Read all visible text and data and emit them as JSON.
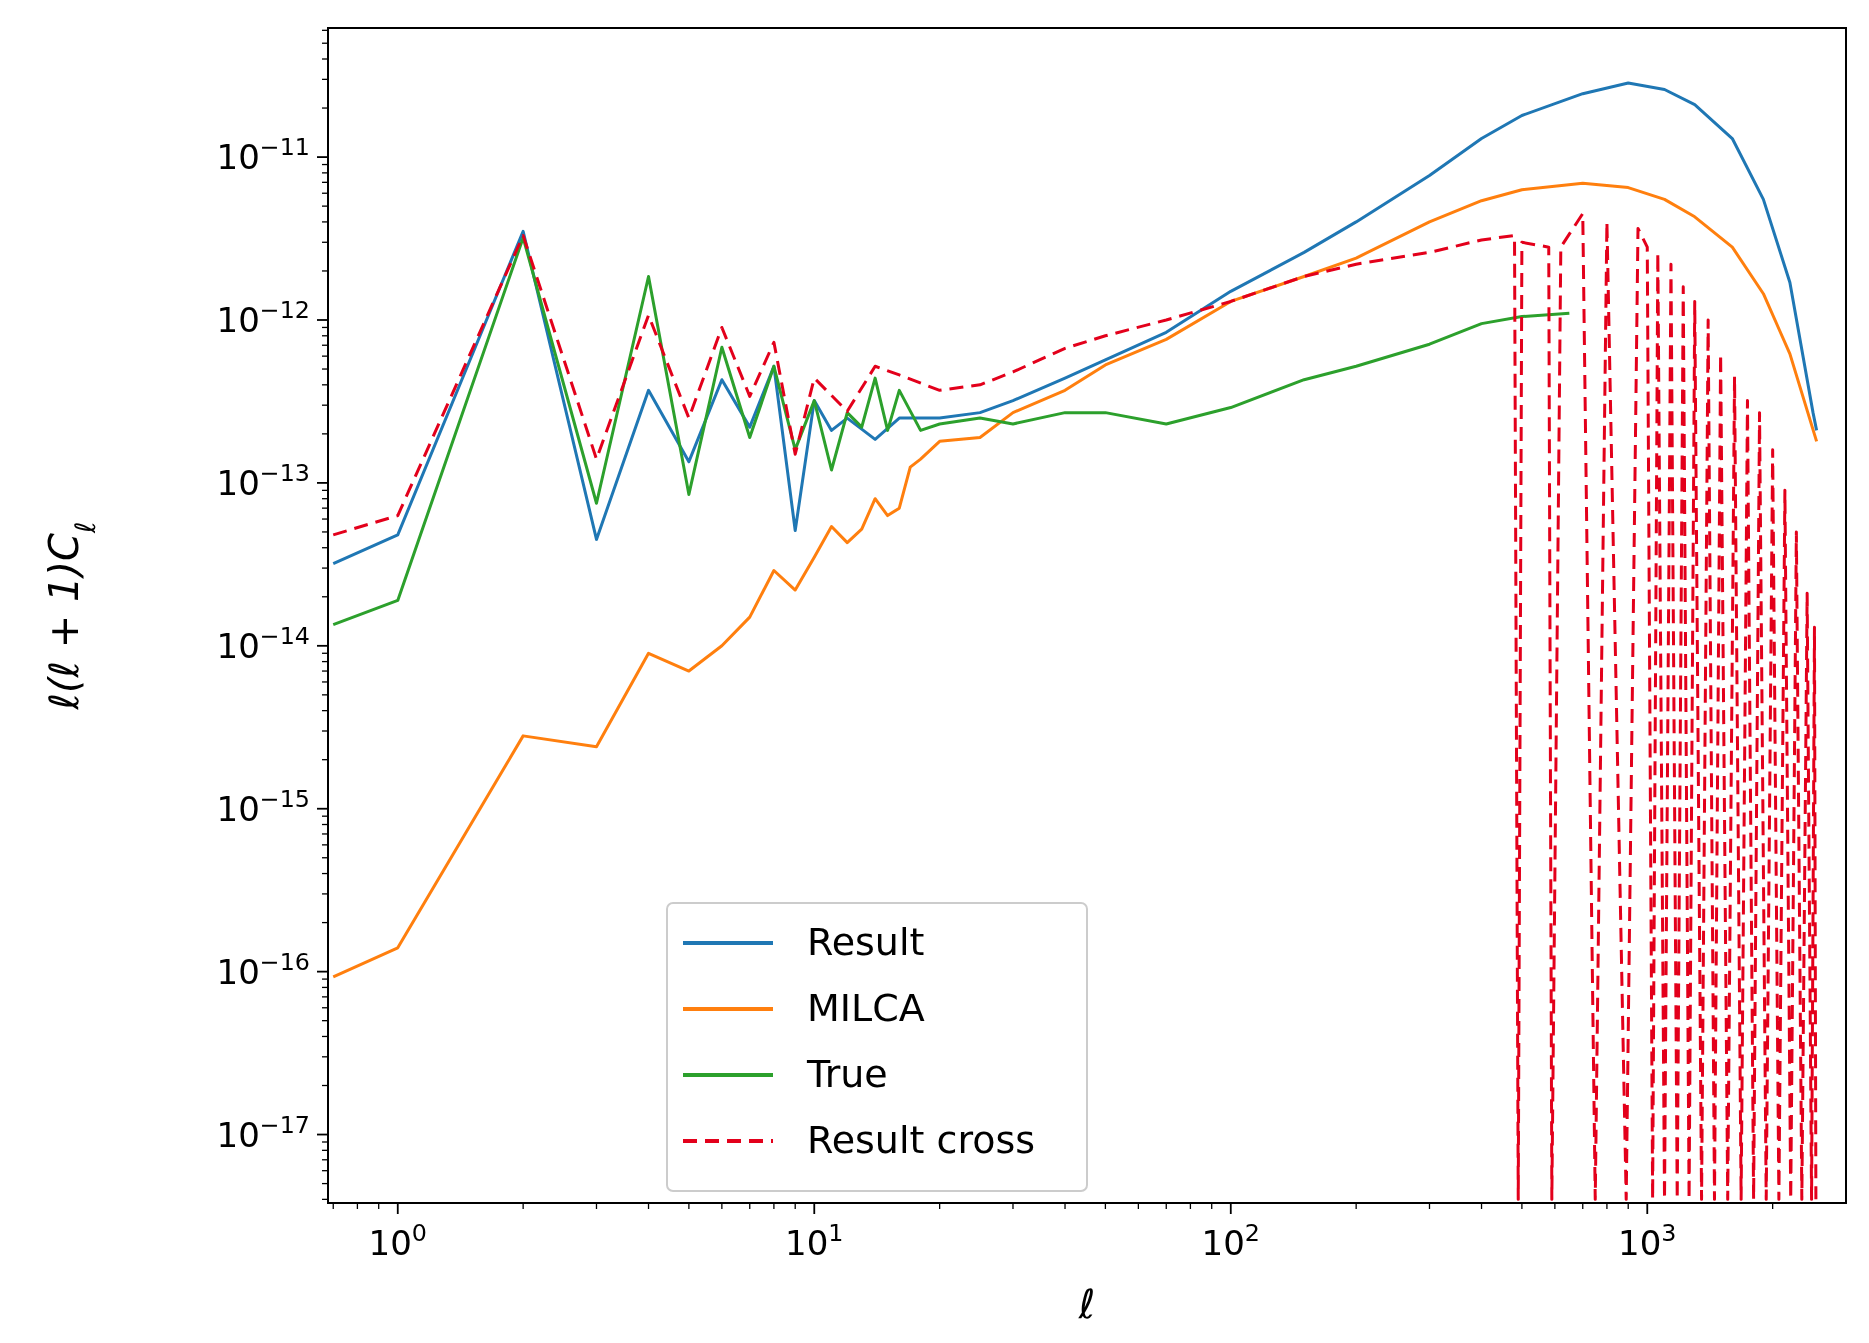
{
  "chart_data": {
    "type": "line",
    "xlabel": "ℓ",
    "ylabel": "ℓ(ℓ + 1)C$_{ℓ}$",
    "log": "xy",
    "legend": "bottom",
    "grid": false,
    "xlim": [
      0.68,
      3000
    ],
    "ylim": [
      3.8e-18,
      6.2e-11
    ],
    "xticks": [
      {
        "value": 0.7,
        "label": null
      },
      {
        "value": 0.8,
        "label": null
      },
      {
        "value": 0.9,
        "label": null
      },
      {
        "value": 1,
        "label": "10$^{0}$"
      },
      {
        "value": 2,
        "label": null
      },
      {
        "value": 3,
        "label": null
      },
      {
        "value": 4,
        "label": null
      },
      {
        "value": 5,
        "label": null
      },
      {
        "value": 6,
        "label": null
      },
      {
        "value": 7,
        "label": null
      },
      {
        "value": 8,
        "label": null
      },
      {
        "value": 9,
        "label": null
      },
      {
        "value": 10,
        "label": "10$^{1}$"
      },
      {
        "value": 20,
        "label": null
      },
      {
        "value": 30,
        "label": null
      },
      {
        "value": 40,
        "label": null
      },
      {
        "value": 50,
        "label": null
      },
      {
        "value": 60,
        "label": null
      },
      {
        "value": 70,
        "label": null
      },
      {
        "value": 80,
        "label": null
      },
      {
        "value": 90,
        "label": null
      },
      {
        "value": 100,
        "label": "10$^{2}$"
      },
      {
        "value": 200,
        "label": null
      },
      {
        "value": 300,
        "label": null
      },
      {
        "value": 400,
        "label": null
      },
      {
        "value": 500,
        "label": null
      },
      {
        "value": 600,
        "label": null
      },
      {
        "value": 700,
        "label": null
      },
      {
        "value": 800,
        "label": null
      },
      {
        "value": 900,
        "label": null
      },
      {
        "value": 1000,
        "label": "10$^{3}$"
      },
      {
        "value": 2000,
        "label": null
      }
    ],
    "yticks": [
      {
        "value": 4e-18,
        "label": null
      },
      {
        "value": 5e-18,
        "label": null
      },
      {
        "value": 6e-18,
        "label": null
      },
      {
        "value": 7e-18,
        "label": null
      },
      {
        "value": 8e-18,
        "label": null
      },
      {
        "value": 9e-18,
        "label": null
      },
      {
        "value": 1e-17,
        "label": "10$^{−17}$"
      },
      {
        "value": 2e-17,
        "label": null
      },
      {
        "value": 3e-17,
        "label": null
      },
      {
        "value": 4e-17,
        "label": null
      },
      {
        "value": 5e-17,
        "label": null
      },
      {
        "value": 6e-17,
        "label": null
      },
      {
        "value": 7e-17,
        "label": null
      },
      {
        "value": 8e-17,
        "label": null
      },
      {
        "value": 9e-17,
        "label": null
      },
      {
        "value": 1e-16,
        "label": "10$^{−16}$"
      },
      {
        "value": 2e-16,
        "label": null
      },
      {
        "value": 3e-16,
        "label": null
      },
      {
        "value": 4e-16,
        "label": null
      },
      {
        "value": 5e-16,
        "label": null
      },
      {
        "value": 6e-16,
        "label": null
      },
      {
        "value": 7e-16,
        "label": null
      },
      {
        "value": 8e-16,
        "label": null
      },
      {
        "value": 9e-16,
        "label": null
      },
      {
        "value": 1e-15,
        "label": "10$^{−15}$"
      },
      {
        "value": 2e-15,
        "label": null
      },
      {
        "value": 3e-15,
        "label": null
      },
      {
        "value": 4e-15,
        "label": null
      },
      {
        "value": 5e-15,
        "label": null
      },
      {
        "value": 6e-15,
        "label": null
      },
      {
        "value": 7e-15,
        "label": null
      },
      {
        "value": 8e-15,
        "label": null
      },
      {
        "value": 9e-15,
        "label": null
      },
      {
        "value": 1e-14,
        "label": "10$^{−14}$"
      },
      {
        "value": 2e-14,
        "label": null
      },
      {
        "value": 3e-14,
        "label": null
      },
      {
        "value": 4e-14,
        "label": null
      },
      {
        "value": 5e-14,
        "label": null
      },
      {
        "value": 6e-14,
        "label": null
      },
      {
        "value": 7e-14,
        "label": null
      },
      {
        "value": 8e-14,
        "label": null
      },
      {
        "value": 9e-14,
        "label": null
      },
      {
        "value": 1e-13,
        "label": "10$^{−13}$"
      },
      {
        "value": 2e-13,
        "label": null
      },
      {
        "value": 3e-13,
        "label": null
      },
      {
        "value": 4e-13,
        "label": null
      },
      {
        "value": 5e-13,
        "label": null
      },
      {
        "value": 6e-13,
        "label": null
      },
      {
        "value": 7e-13,
        "label": null
      },
      {
        "value": 8e-13,
        "label": null
      },
      {
        "value": 9e-13,
        "label": null
      },
      {
        "value": 1e-12,
        "label": "10$^{−12}$"
      },
      {
        "value": 2e-12,
        "label": null
      },
      {
        "value": 3e-12,
        "label": null
      },
      {
        "value": 4e-12,
        "label": null
      },
      {
        "value": 5e-12,
        "label": null
      },
      {
        "value": 6e-12,
        "label": null
      },
      {
        "value": 7e-12,
        "label": null
      },
      {
        "value": 8e-12,
        "label": null
      },
      {
        "value": 9e-12,
        "label": null
      },
      {
        "value": 1e-11,
        "label": "10$^{−11}$"
      },
      {
        "value": 2e-11,
        "label": null
      },
      {
        "value": 3e-11,
        "label": null
      },
      {
        "value": 4e-11,
        "label": null
      },
      {
        "value": 5e-11,
        "label": null
      },
      {
        "value": 6e-11,
        "label": null
      }
    ],
    "series": [
      {
        "name": "Result",
        "color": "#1f77b4",
        "line_style": "solid",
        "x": [
          0.7,
          1,
          2,
          3,
          4,
          5,
          6,
          7,
          8,
          9,
          10,
          11,
          12,
          14,
          16,
          20,
          25,
          30,
          40,
          50,
          70,
          100,
          150,
          200,
          300,
          400,
          500,
          700,
          900,
          1100,
          1300,
          1600,
          1900,
          2200,
          2500,
          2550
        ],
        "values": [
          3.2e-14,
          4.8e-14,
          3.5e-12,
          4.5e-14,
          3.7e-13,
          1.35e-13,
          4.3e-13,
          2.2e-13,
          5.2e-13,
          5.1e-14,
          3.2e-13,
          2.1e-13,
          2.5e-13,
          1.85e-13,
          2.5e-13,
          2.5e-13,
          2.7e-13,
          3.2e-13,
          4.4e-13,
          5.7e-13,
          8.4e-13,
          1.5e-12,
          2.6e-12,
          4e-12,
          7.7e-12,
          1.3e-11,
          1.8e-11,
          2.45e-11,
          2.85e-11,
          2.6e-11,
          2.1e-11,
          1.3e-11,
          5.5e-12,
          1.7e-12,
          2.7e-13,
          2.1e-13
        ]
      },
      {
        "name": "MILCA",
        "color": "#ff7f0e",
        "line_style": "solid",
        "x": [
          0.7,
          1,
          2,
          3,
          4,
          5,
          6,
          7,
          8,
          9,
          10,
          11,
          12,
          13,
          14,
          15,
          16,
          17,
          18,
          20,
          25,
          30,
          40,
          50,
          70,
          100,
          150,
          200,
          300,
          400,
          500,
          700,
          900,
          1100,
          1300,
          1600,
          1900,
          2200,
          2550
        ],
        "values": [
          9.3e-17,
          1.4e-16,
          2.8e-15,
          2.4e-15,
          9e-15,
          7e-15,
          1e-14,
          1.5e-14,
          2.9e-14,
          2.2e-14,
          3.5e-14,
          5.4e-14,
          4.3e-14,
          5.2e-14,
          8e-14,
          6.3e-14,
          7e-14,
          1.25e-13,
          1.4e-13,
          1.8e-13,
          1.9e-13,
          2.7e-13,
          3.7e-13,
          5.3e-13,
          7.6e-13,
          1.3e-12,
          1.85e-12,
          2.4e-12,
          4e-12,
          5.4e-12,
          6.3e-12,
          6.9e-12,
          6.5e-12,
          5.5e-12,
          4.3e-12,
          2.8e-12,
          1.45e-12,
          6.2e-13,
          1.8e-13
        ]
      },
      {
        "name": "True",
        "color": "#2ca02c",
        "line_style": "solid",
        "x": [
          0.7,
          1,
          2,
          3,
          4,
          5,
          6,
          7,
          8,
          9,
          10,
          11,
          12,
          13,
          14,
          15,
          16,
          18,
          20,
          25,
          30,
          40,
          50,
          70,
          100,
          150,
          200,
          300,
          400,
          500,
          650
        ],
        "values": [
          1.35e-14,
          1.9e-14,
          3.2e-12,
          7.5e-14,
          1.85e-12,
          8.5e-14,
          6.8e-13,
          1.9e-13,
          5.2e-13,
          1.6e-13,
          3.2e-13,
          1.2e-13,
          2.7e-13,
          2.2e-13,
          4.4e-13,
          2.1e-13,
          3.7e-13,
          2.1e-13,
          2.3e-13,
          2.5e-13,
          2.3e-13,
          2.7e-13,
          2.7e-13,
          2.3e-13,
          2.9e-13,
          4.3e-13,
          5.2e-13,
          7.1e-13,
          9.5e-13,
          1.05e-12,
          1.1e-12
        ]
      },
      {
        "name": "Result cross",
        "color": "#e3001b",
        "line_style": "dashed",
        "x": [
          0.7,
          1,
          2,
          3,
          4,
          5,
          6,
          7,
          8,
          9,
          10,
          12,
          14,
          16,
          20,
          25,
          30,
          40,
          50,
          70,
          100,
          150,
          200,
          300,
          400,
          480,
          490,
          500,
          580,
          590,
          620,
          700,
          750,
          800,
          890,
          950,
          1000,
          1030,
          1060,
          1100,
          1140,
          1180,
          1220,
          1260,
          1300,
          1350,
          1400,
          1450,
          1500,
          1560,
          1620,
          1680,
          1740,
          1800,
          1860,
          1930,
          2000,
          2070,
          2140,
          2210,
          2280,
          2350,
          2420,
          2480,
          2520,
          2540
        ],
        "values": [
          4.8e-14,
          6.3e-14,
          3.3e-12,
          1.4e-13,
          1.07e-12,
          2.5e-13,
          9e-13,
          3.4e-13,
          7.3e-13,
          1.5e-13,
          4.4e-13,
          2.75e-13,
          5.2e-13,
          4.6e-13,
          3.7e-13,
          4e-13,
          4.8e-13,
          6.7e-13,
          8e-13,
          1e-12,
          1.3e-12,
          1.85e-12,
          2.2e-12,
          2.6e-12,
          3.1e-12,
          3.3e-12,
          4e-18,
          3e-12,
          2.8e-12,
          4e-18,
          2.8e-12,
          4.5e-12,
          4e-18,
          4e-12,
          4e-18,
          3.65e-12,
          2.8e-12,
          4e-18,
          2.6e-12,
          4e-18,
          2.2e-12,
          4e-18,
          1.6e-12,
          4e-18,
          1.3e-12,
          4e-18,
          1e-12,
          4e-18,
          6.2e-13,
          4e-18,
          4.5e-13,
          4e-18,
          3.2e-13,
          4e-18,
          2.7e-13,
          4e-18,
          1.6e-13,
          4e-18,
          9e-14,
          4e-18,
          5e-14,
          4e-18,
          2.1e-14,
          4e-18,
          1.3e-14,
          4e-18
        ]
      }
    ]
  }
}
